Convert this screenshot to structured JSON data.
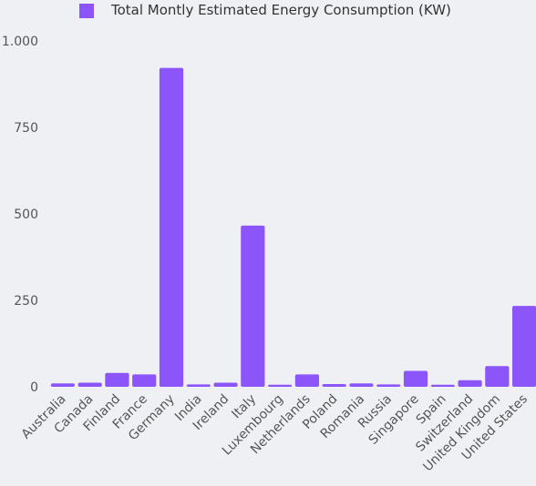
{
  "chart_data": {
    "type": "bar",
    "categories": [
      "Australia",
      "Canada",
      "Finland",
      "France",
      "Germany",
      "India",
      "Ireland",
      "Italy",
      "Luxembourg",
      "Netherlands",
      "Poland",
      "Romania",
      "Russia",
      "Singapore",
      "Spain",
      "Switzerland",
      "United Kingdom",
      "United States"
    ],
    "series": [
      {
        "name": "Total Montly Estimated Energy Consumption (KW)",
        "values": [
          10,
          12,
          40,
          36,
          922,
          7,
          12,
          466,
          6,
          36,
          8,
          10,
          7,
          46,
          6,
          19,
          60,
          234
        ]
      }
    ],
    "ylim": [
      0,
      1000
    ],
    "yticks": [
      0,
      250,
      500,
      750,
      1000
    ],
    "ytick_labels": [
      "0",
      "250",
      "500",
      "750",
      "1.000"
    ],
    "legend_position": "top-center",
    "grid": false,
    "colors": {
      "bar": "#8b55fa",
      "background": "#eef0f3"
    }
  }
}
